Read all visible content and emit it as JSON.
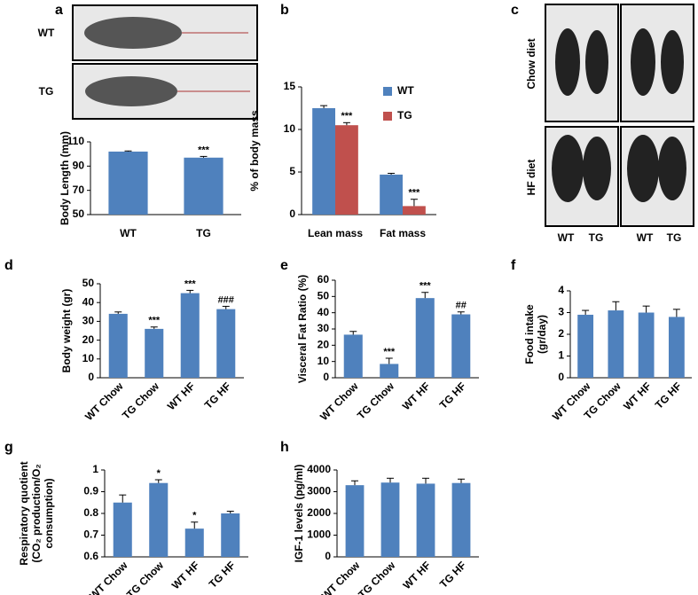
{
  "panel_labels": [
    "a",
    "b",
    "c",
    "d",
    "e",
    "f",
    "g",
    "h"
  ],
  "images": {
    "a_rows": [
      "WT",
      "TG"
    ],
    "c_rows": [
      "Chow diet",
      "HF diet"
    ],
    "c_cols": [
      "WT",
      "TG",
      "WT",
      "TG"
    ]
  },
  "chart_data": [
    {
      "type": "bar",
      "ylabel": [
        "Body Length (mm)"
      ],
      "categories": [
        "WT",
        "TG"
      ],
      "series": [
        {
          "color": "#4f81bd",
          "values": [
            102,
            97
          ],
          "errors": [
            0.5,
            1
          ],
          "annotations": [
            null,
            "***"
          ]
        }
      ],
      "ylim": [
        50,
        110
      ],
      "yticks": [
        50,
        70,
        90,
        110
      ]
    },
    {
      "type": "bar",
      "ylabel": [
        "% of body mass"
      ],
      "categories": [
        "Lean mass",
        "Fat mass"
      ],
      "series": [
        {
          "name": "WT",
          "color": "#4f81bd",
          "values": [
            12.5,
            4.7
          ],
          "errors": [
            0.3,
            0.15
          ],
          "annotations": [
            null,
            null
          ]
        },
        {
          "name": "TG",
          "color": "#c0504d",
          "values": [
            10.5,
            1.0
          ],
          "errors": [
            0.3,
            0.8
          ],
          "annotations": [
            "***",
            "***"
          ]
        }
      ],
      "ylim": [
        0,
        15
      ],
      "yticks": [
        0,
        5,
        10,
        15
      ]
    },
    {
      "type": "bar",
      "ylabel": [
        "Body weight (gr)"
      ],
      "categories": [
        "WT Chow",
        "TG Chow",
        "WT HF",
        "TG HF"
      ],
      "series": [
        {
          "color": "#4f81bd",
          "values": [
            34,
            26,
            45,
            36.5
          ],
          "errors": [
            1,
            1,
            1.5,
            1.5
          ],
          "annotations": [
            null,
            "***",
            "***",
            "###"
          ]
        }
      ],
      "ylim": [
        0,
        50
      ],
      "yticks": [
        0,
        10,
        20,
        30,
        40,
        50
      ]
    },
    {
      "type": "bar",
      "ylabel": [
        "Visceral Fat Ratio (%)"
      ],
      "categories": [
        "WT Chow",
        "TG Chow",
        "WT HF",
        "TG HF"
      ],
      "series": [
        {
          "color": "#4f81bd",
          "values": [
            26.5,
            8.5,
            49,
            39
          ],
          "errors": [
            2,
            3.5,
            3.5,
            1.5
          ],
          "annotations": [
            null,
            "***",
            "***",
            "##"
          ]
        }
      ],
      "ylim": [
        0,
        60
      ],
      "yticks": [
        0,
        10,
        20,
        30,
        40,
        50,
        60
      ]
    },
    {
      "type": "bar",
      "ylabel": [
        "Food intake",
        "(gr/day)"
      ],
      "categories": [
        "WT Chow",
        "TG Chow",
        "WT HF",
        "TG HF"
      ],
      "series": [
        {
          "color": "#4f81bd",
          "values": [
            2.9,
            3.1,
            3.0,
            2.8
          ],
          "errors": [
            0.2,
            0.4,
            0.3,
            0.35
          ],
          "annotations": [
            null,
            null,
            null,
            null
          ]
        }
      ],
      "ylim": [
        0,
        4
      ],
      "yticks": [
        0,
        1,
        2,
        3,
        4
      ]
    },
    {
      "type": "bar",
      "ylabel": [
        "Respiratory quotient",
        "(CO₂ production/O₂",
        "consumption)"
      ],
      "categories": [
        "WT Chow",
        "TG Chow",
        "WT HF",
        "TG HF"
      ],
      "series": [
        {
          "color": "#4f81bd",
          "values": [
            0.85,
            0.94,
            0.73,
            0.8
          ],
          "errors": [
            0.035,
            0.015,
            0.03,
            0.01
          ],
          "annotations": [
            null,
            "*",
            "*",
            null
          ]
        }
      ],
      "ylim": [
        0.6,
        1
      ],
      "yticks": [
        0.6,
        0.7,
        0.8,
        0.9,
        1
      ]
    },
    {
      "type": "bar",
      "ylabel": [
        "IGF-1 levels (pg/ml)"
      ],
      "categories": [
        "WT Chow",
        "TG Chow",
        "WT HF",
        "TG HF"
      ],
      "series": [
        {
          "color": "#4f81bd",
          "values": [
            3300,
            3420,
            3370,
            3400
          ],
          "errors": [
            200,
            200,
            250,
            180
          ],
          "annotations": [
            null,
            null,
            null,
            null
          ]
        }
      ],
      "ylim": [
        0,
        4000
      ],
      "yticks": [
        0,
        1000,
        2000,
        3000,
        4000
      ]
    }
  ]
}
